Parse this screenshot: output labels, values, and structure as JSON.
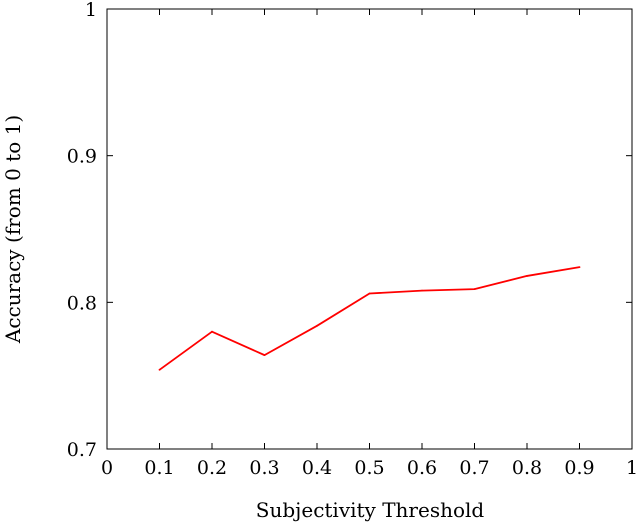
{
  "chart_data": {
    "type": "line",
    "xlabel": "Subjectivity Threshold",
    "ylabel": "Accuracy (from 0 to 1)",
    "xlim": [
      0,
      1
    ],
    "ylim": [
      0.7,
      1
    ],
    "x_ticks": [
      0,
      0.1,
      0.2,
      0.3,
      0.4,
      0.5,
      0.6,
      0.7,
      0.8,
      0.9,
      1
    ],
    "x_tick_labels": [
      "0",
      "0.1",
      "0.2",
      "0.3",
      "0.4",
      "0.5",
      "0.6",
      "0.7",
      "0.8",
      "0.9",
      "1"
    ],
    "y_ticks": [
      0.7,
      0.8,
      0.9,
      1
    ],
    "y_tick_labels": [
      "0.7",
      "0.8",
      "0.9",
      "1"
    ],
    "grid": false,
    "series": [
      {
        "color": "#ff0000",
        "x": [
          0.1,
          0.2,
          0.3,
          0.4,
          0.5,
          0.6,
          0.7,
          0.8,
          0.9
        ],
        "values": [
          0.754,
          0.78,
          0.764,
          0.784,
          0.806,
          0.808,
          0.809,
          0.818,
          0.824
        ]
      }
    ]
  }
}
